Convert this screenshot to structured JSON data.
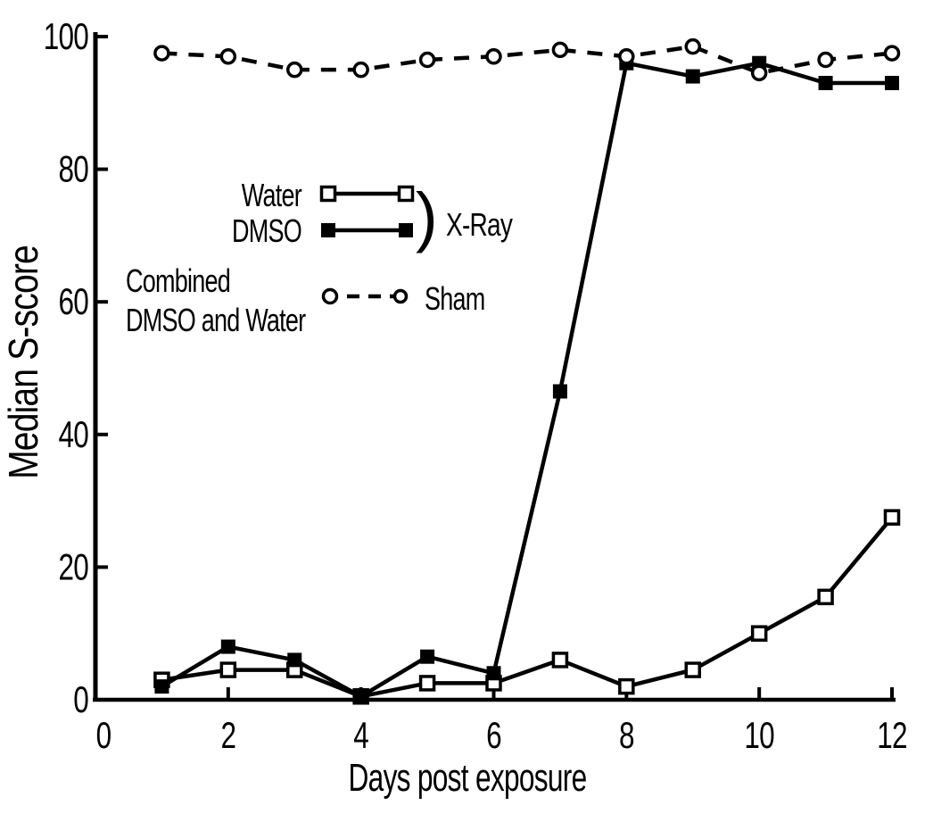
{
  "figure": {
    "background": "#ffffff",
    "ink": "#000000"
  },
  "chart_data": {
    "type": "line",
    "title": "",
    "xlabel": "Days post exposure",
    "ylabel": "Median S-score",
    "xlim": [
      0,
      12
    ],
    "ylim": [
      0,
      100
    ],
    "x_ticks": [
      0,
      2,
      4,
      6,
      8,
      10,
      12
    ],
    "y_ticks": [
      0,
      20,
      40,
      60,
      80,
      100
    ],
    "grid": false,
    "legend_position": "inside-upper-left",
    "x": [
      1,
      2,
      3,
      4,
      5,
      6,
      7,
      8,
      9,
      10,
      11,
      12
    ],
    "series": [
      {
        "name": "Water",
        "group": "X-Ray",
        "marker": "open-square",
        "line_style": "solid",
        "values": [
          3,
          4.5,
          4.5,
          0.5,
          2.5,
          2.5,
          6,
          2,
          4.5,
          10,
          15.5,
          27.5
        ]
      },
      {
        "name": "DMSO",
        "group": "X-Ray",
        "marker": "filled-square",
        "line_style": "solid",
        "values": [
          2,
          8,
          6,
          0.5,
          6.5,
          4,
          46.5,
          96,
          94,
          96,
          93,
          93
        ]
      },
      {
        "name": "Sham",
        "group": "Sham",
        "marker": "open-circle",
        "line_style": "dashed",
        "values": [
          97.5,
          97,
          95,
          95,
          96.5,
          97,
          98,
          97,
          98.5,
          94.5,
          96.5,
          97.5
        ]
      }
    ],
    "legend": {
      "water_label": "Water",
      "dmso_label": "DMSO",
      "bracket": ")",
      "xray_group_label": "X-Ray",
      "combined_line1": "Combined",
      "combined_line2": "DMSO and Water",
      "sham_label": "Sham"
    }
  }
}
